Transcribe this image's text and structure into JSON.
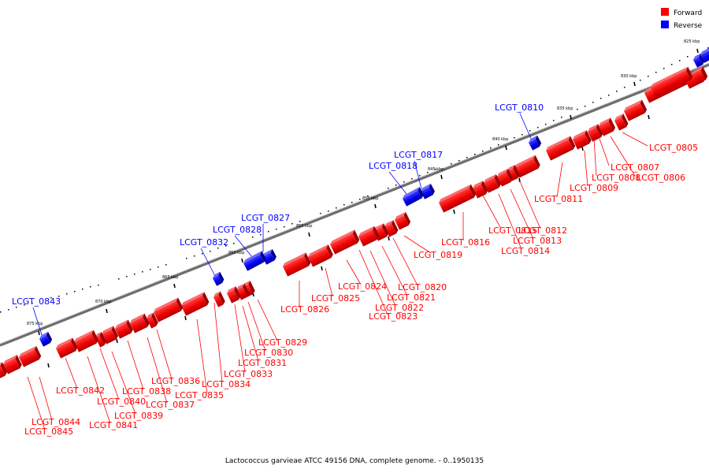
{
  "caption": "Lactococcus garvieae ATCC 49156 DNA, complete genome. - 0..1950135",
  "legend": [
    {
      "label": "Forward",
      "color": "#ff0000"
    },
    {
      "label": "Reverse",
      "color": "#0000ff"
    }
  ],
  "colors": {
    "forward": "#ff0000",
    "reverse": "#0000ff",
    "backbone": "#7a7a7a"
  },
  "kbp_ticks": [
    {
      "label": "825 kbp",
      "kbp": 825
    },
    {
      "label": "830 kbp",
      "kbp": 830
    },
    {
      "label": "835 kbp",
      "kbp": 835
    },
    {
      "label": "840 kbp",
      "kbp": 840
    },
    {
      "label": "845 kbp",
      "kbp": 845
    },
    {
      "label": "850 kbp",
      "kbp": 850
    },
    {
      "label": "855 kbp",
      "kbp": 855
    },
    {
      "label": "860 kbp",
      "kbp": 860
    },
    {
      "label": "865 kbp",
      "kbp": 865
    },
    {
      "label": "870 kbp",
      "kbp": 870
    },
    {
      "label": "875 kbp",
      "kbp": 875
    }
  ],
  "genes": [
    {
      "name": "LCGT_0805",
      "strand": "forward"
    },
    {
      "name": "LCGT_0806",
      "strand": "forward"
    },
    {
      "name": "LCGT_0807",
      "strand": "forward"
    },
    {
      "name": "LCGT_0808",
      "strand": "forward"
    },
    {
      "name": "LCGT_0809",
      "strand": "forward"
    },
    {
      "name": "LCGT_0810",
      "strand": "reverse"
    },
    {
      "name": "LCGT_0811",
      "strand": "forward"
    },
    {
      "name": "LCGT_0812",
      "strand": "forward"
    },
    {
      "name": "LCGT_0813",
      "strand": "forward"
    },
    {
      "name": "LCGT_0814",
      "strand": "forward"
    },
    {
      "name": "LCGT_0815",
      "strand": "forward"
    },
    {
      "name": "LCGT_0816",
      "strand": "forward"
    },
    {
      "name": "LCGT_0817",
      "strand": "reverse"
    },
    {
      "name": "LCGT_0818",
      "strand": "reverse"
    },
    {
      "name": "LCGT_0819",
      "strand": "forward"
    },
    {
      "name": "LCGT_0820",
      "strand": "forward"
    },
    {
      "name": "LCGT_0821",
      "strand": "forward"
    },
    {
      "name": "LCGT_0822",
      "strand": "forward"
    },
    {
      "name": "LCGT_0823",
      "strand": "forward"
    },
    {
      "name": "LCGT_0824",
      "strand": "forward"
    },
    {
      "name": "LCGT_0825",
      "strand": "forward"
    },
    {
      "name": "LCGT_0826",
      "strand": "forward"
    },
    {
      "name": "LCGT_0827",
      "strand": "reverse"
    },
    {
      "name": "LCGT_0828",
      "strand": "reverse"
    },
    {
      "name": "LCGT_0829",
      "strand": "forward"
    },
    {
      "name": "LCGT_0830",
      "strand": "forward"
    },
    {
      "name": "LCGT_0831",
      "strand": "forward"
    },
    {
      "name": "LCGT_0832",
      "strand": "reverse"
    },
    {
      "name": "LCGT_0833",
      "strand": "forward"
    },
    {
      "name": "LCGT_0834",
      "strand": "forward"
    },
    {
      "name": "LCGT_0835",
      "strand": "forward"
    },
    {
      "name": "LCGT_0836",
      "strand": "forward"
    },
    {
      "name": "LCGT_0837",
      "strand": "forward"
    },
    {
      "name": "LCGT_0838",
      "strand": "forward"
    },
    {
      "name": "LCGT_0839",
      "strand": "forward"
    },
    {
      "name": "LCGT_0840",
      "strand": "forward"
    },
    {
      "name": "LCGT_0841",
      "strand": "forward"
    },
    {
      "name": "LCGT_0842",
      "strand": "forward"
    },
    {
      "name": "LCGT_0843",
      "strand": "reverse"
    },
    {
      "name": "LCGT_0844",
      "strand": "forward"
    },
    {
      "name": "LCGT_0845",
      "strand": "forward"
    }
  ]
}
